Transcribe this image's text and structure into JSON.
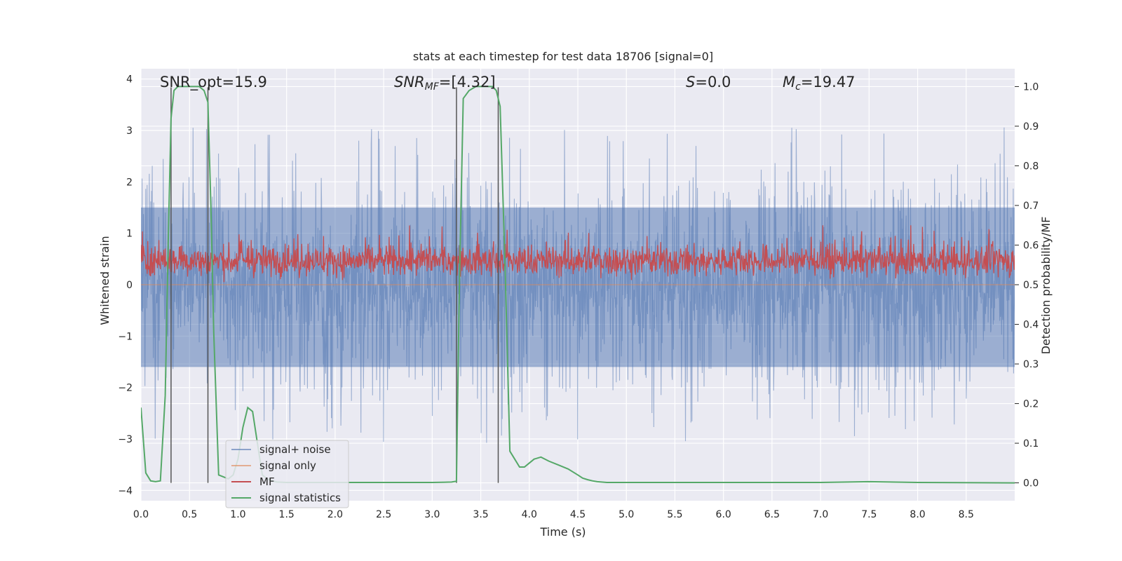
{
  "chart_data": {
    "type": "line",
    "title": "stats at each timestep for test data 18706 [signal=0]",
    "xlabel": "Time (s)",
    "ylabel_left": "Whitened strain",
    "ylabel_right": "Detection probability/MF",
    "xlim": [
      0.0,
      9.0
    ],
    "ylim_left": [
      -4.2,
      4.2
    ],
    "ylim_right": [
      -0.045,
      1.045
    ],
    "x_ticks": [
      "0.0",
      "0.5",
      "1.0",
      "1.5",
      "2.0",
      "2.5",
      "3.0",
      "3.5",
      "4.0",
      "4.5",
      "5.0",
      "5.5",
      "6.0",
      "6.5",
      "7.0",
      "7.5",
      "8.0",
      "8.5"
    ],
    "y_ticks_left": [
      "4",
      "3",
      "2",
      "1",
      "0",
      "−1",
      "−2",
      "−3",
      "−4"
    ],
    "y_ticks_right": [
      "1.0",
      "0.9",
      "0.8",
      "0.7",
      "0.6",
      "0.5",
      "0.4",
      "0.3",
      "0.2",
      "0.1",
      "0.0"
    ],
    "grid": true,
    "legend_position": "lower-left",
    "annotations": {
      "snr_opt": "SNR_opt=15.9",
      "snr_mf_main": "SNR",
      "snr_mf_sub": "MF",
      "snr_mf_value": "=[4.32]",
      "s_italic": "S",
      "s_value": "=0.0",
      "mc_main": "M",
      "mc_sub": "c",
      "mc_value": "=19.47"
    },
    "vertical_markers_x": [
      0.31,
      0.69,
      3.25,
      3.68
    ],
    "series": [
      {
        "name": "signal+ noise",
        "color": "#4c72b0",
        "axis": "left",
        "description": "whitened strain noise, roughly zero-mean with spikes up to about 3.8 and down to about -3.9",
        "envelope": {
          "typical_upper": 1.5,
          "typical_lower": -1.6
        }
      },
      {
        "name": "signal only",
        "color": "#dd8452",
        "axis": "left",
        "x": [
          0.0,
          9.0
        ],
        "y": [
          0.0,
          0.0
        ]
      },
      {
        "name": "MF",
        "color": "#c44e52",
        "axis": "right",
        "description": "matched filter output fluctuating roughly between 0.51 and 0.62 with peaks near 0.64",
        "mean": 0.56
      },
      {
        "name": "signal statistics",
        "color": "#55a868",
        "axis": "right",
        "x": [
          0.0,
          0.05,
          0.1,
          0.15,
          0.2,
          0.25,
          0.28,
          0.31,
          0.34,
          0.38,
          0.45,
          0.55,
          0.6,
          0.65,
          0.69,
          0.72,
          0.75,
          0.8,
          0.85,
          0.9,
          0.95,
          1.0,
          1.05,
          1.1,
          1.15,
          1.2,
          1.25,
          1.3,
          1.35,
          1.4,
          1.5,
          1.6,
          1.8,
          2.0,
          2.5,
          3.0,
          3.2,
          3.25,
          3.28,
          3.32,
          3.38,
          3.45,
          3.55,
          3.62,
          3.66,
          3.7,
          3.75,
          3.8,
          3.85,
          3.9,
          3.95,
          4.0,
          4.05,
          4.12,
          4.2,
          4.3,
          4.4,
          4.5,
          4.55,
          4.6,
          4.65,
          4.7,
          4.8,
          5.0,
          6.0,
          7.0,
          7.5,
          8.0,
          9.0
        ],
        "y": [
          0.19,
          0.025,
          0.005,
          0.003,
          0.005,
          0.22,
          0.6,
          0.92,
          0.99,
          1.0,
          1.0,
          1.0,
          1.0,
          0.99,
          0.96,
          0.7,
          0.38,
          0.02,
          0.015,
          0.01,
          0.02,
          0.06,
          0.14,
          0.19,
          0.18,
          0.1,
          0.02,
          0.01,
          0.005,
          0.002,
          0.001,
          0.001,
          0.001,
          0.001,
          0.001,
          0.001,
          0.002,
          0.004,
          0.5,
          0.97,
          0.99,
          1.0,
          1.0,
          1.0,
          0.99,
          0.95,
          0.55,
          0.08,
          0.06,
          0.04,
          0.04,
          0.05,
          0.06,
          0.065,
          0.055,
          0.045,
          0.035,
          0.02,
          0.012,
          0.008,
          0.005,
          0.003,
          0.001,
          0.001,
          0.001,
          0.001,
          0.003,
          0.001,
          0.0
        ]
      }
    ]
  }
}
